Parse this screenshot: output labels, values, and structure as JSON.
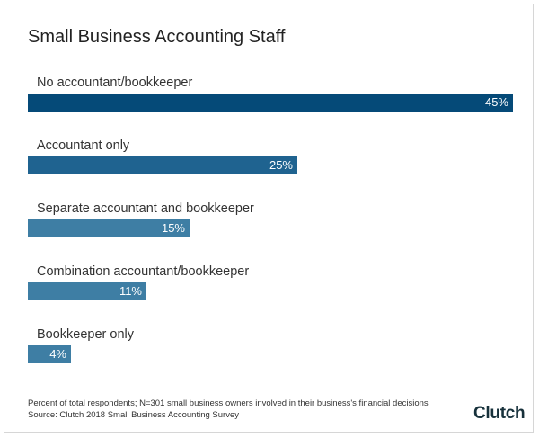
{
  "title": "Small Business Accounting Staff",
  "chart_data": {
    "type": "bar",
    "orientation": "horizontal",
    "title": "Small Business Accounting Staff",
    "categories": [
      "No accountant/bookkeeper",
      "Accountant only",
      "Separate accountant and bookkeeper",
      "Combination accountant/bookkeeper",
      "Bookkeeper only"
    ],
    "values": [
      45,
      25,
      15,
      11,
      4
    ],
    "value_labels": [
      "45%",
      "25%",
      "15%",
      "11%",
      "4%"
    ],
    "unit": "%",
    "xlim": [
      0,
      45
    ],
    "grid": false,
    "legend": "none",
    "colors": [
      "#054a78",
      "#1f6390",
      "#3e7ea4",
      "#3e7ea4",
      "#3e7ea4"
    ]
  },
  "footnote": {
    "line1": "Percent of total respondents; N=301 small business owners involved in their business's financial decisions",
    "line2": "Source: Clutch 2018 Small Business Accounting Survey"
  },
  "brand": {
    "text": "Clutch",
    "dot_color": "#e6352e"
  }
}
